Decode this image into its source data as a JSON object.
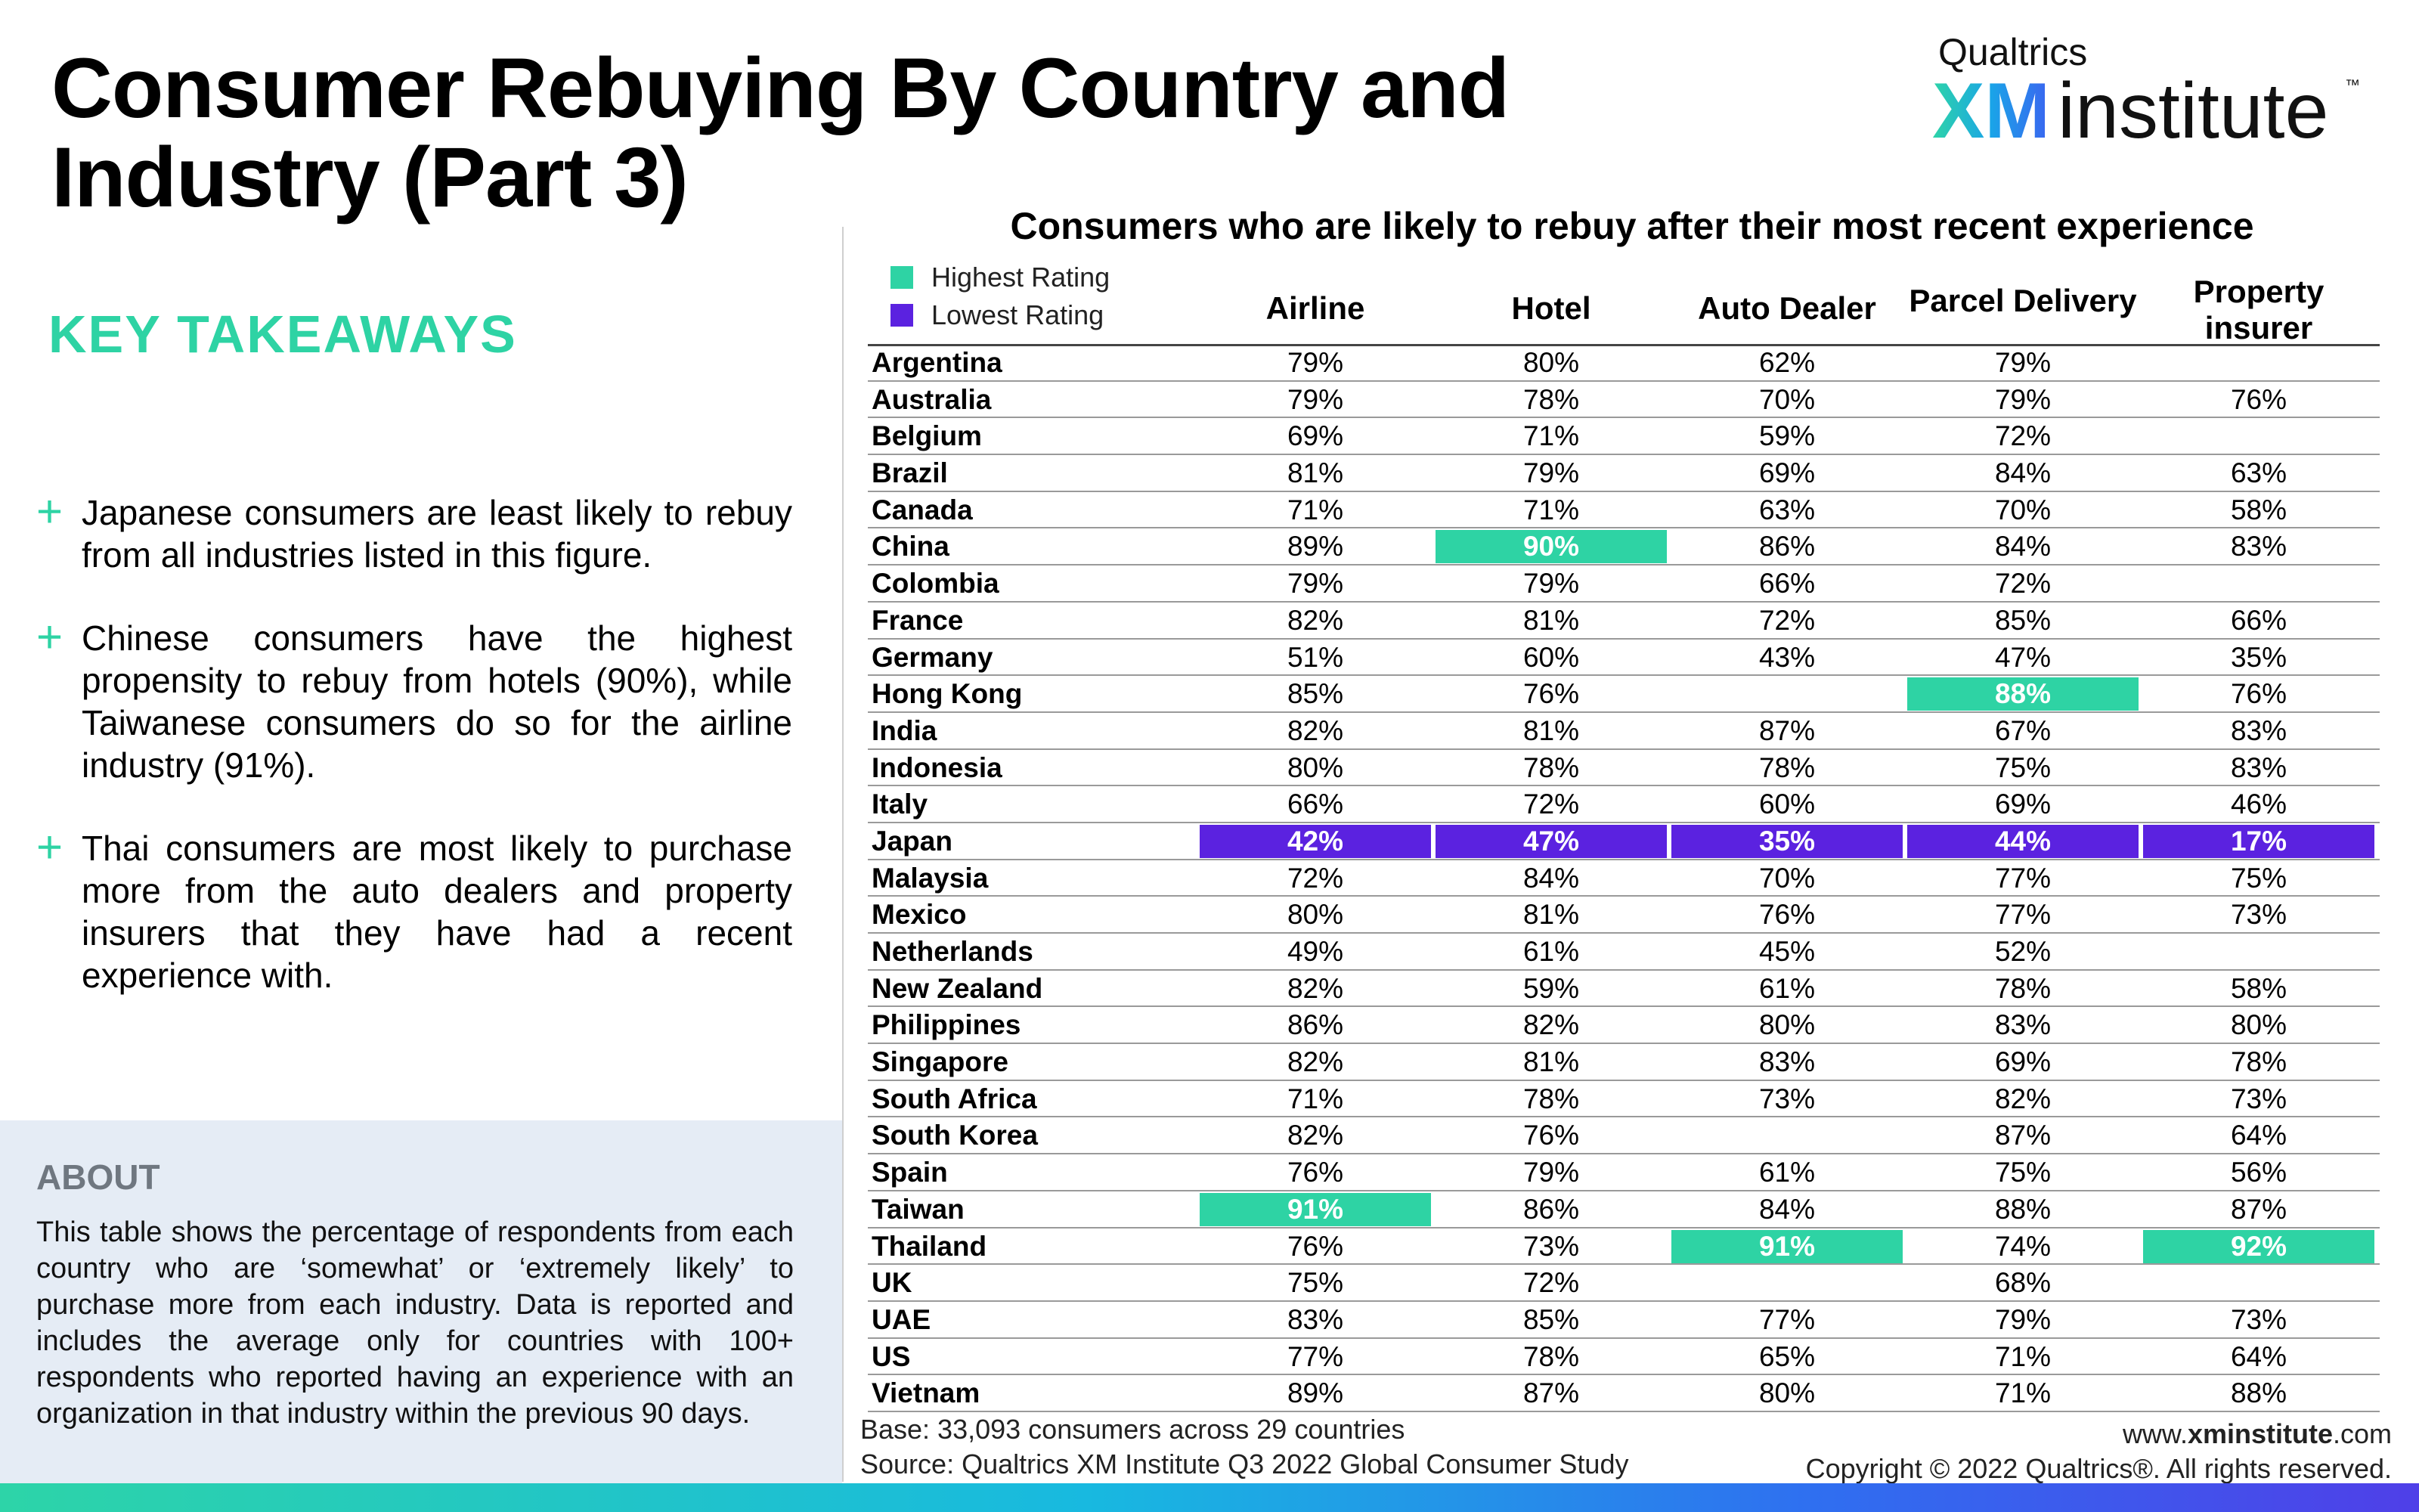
{
  "title": "Consumer Rebuying By Country and Industry (Part 3)",
  "brand": {
    "top": "Qualtrics",
    "xm": "XM",
    "institute": "institute",
    "tm": "™"
  },
  "takeaways": {
    "heading": "KEY TAKEAWAYS",
    "items": [
      "Japanese consumers are least likely to rebuy from all industries listed in this figure.",
      "Chinese consumers have the highest propensity to rebuy from hotels (90%), while Taiwanese consumers do so for the airline industry (91%).",
      "Thai consumers are most likely to purchase more from the auto dealers and property insurers that they have had a recent experience with."
    ]
  },
  "about": {
    "heading": "ABOUT",
    "text": "This table shows the percentage of respondents from each country who are ‘somewhat’ or ‘extremely likely’ to purchase more from each industry. Data is reported and includes the average only for countries with 100+ respondents who reported having an experience with an organization in that industry within the previous 90 days."
  },
  "footer": {
    "base": "Base: 33,093 consumers across 29 countries",
    "source": "Source: Qualtrics XM Institute Q3 2022 Global Consumer Study",
    "url_prefix": "www.",
    "url_bold": "xminstitute",
    "url_suffix": ".com",
    "copyright": "Copyright © 2022 Qualtrics®. All rights reserved."
  },
  "colors": {
    "highest": "#2ed3a4",
    "lowest": "#5b22e0",
    "accent": "#2ed3a4"
  },
  "chart_data": {
    "type": "table",
    "title": "Consumers who are likely to rebuy after their most recent experience",
    "legend": [
      {
        "label": "Highest Rating",
        "color": "#2ed3a4"
      },
      {
        "label": "Lowest Rating",
        "color": "#5b22e0"
      }
    ],
    "columns": [
      "Airline",
      "Hotel",
      "Auto Dealer",
      "Parcel Delivery",
      "Property insurer"
    ],
    "rows": [
      {
        "country": "Argentina",
        "values": [
          "79%",
          "80%",
          "62%",
          "79%",
          ""
        ]
      },
      {
        "country": "Australia",
        "values": [
          "79%",
          "78%",
          "70%",
          "79%",
          "76%"
        ]
      },
      {
        "country": "Belgium",
        "values": [
          "69%",
          "71%",
          "59%",
          "72%",
          ""
        ]
      },
      {
        "country": "Brazil",
        "values": [
          "81%",
          "79%",
          "69%",
          "84%",
          "63%"
        ]
      },
      {
        "country": "Canada",
        "values": [
          "71%",
          "71%",
          "63%",
          "70%",
          "58%"
        ]
      },
      {
        "country": "China",
        "values": [
          "89%",
          "90%",
          "86%",
          "84%",
          "83%"
        ],
        "highlight": [
          null,
          "highest",
          null,
          null,
          null
        ]
      },
      {
        "country": "Colombia",
        "values": [
          "79%",
          "79%",
          "66%",
          "72%",
          ""
        ]
      },
      {
        "country": "France",
        "values": [
          "82%",
          "81%",
          "72%",
          "85%",
          "66%"
        ]
      },
      {
        "country": "Germany",
        "values": [
          "51%",
          "60%",
          "43%",
          "47%",
          "35%"
        ]
      },
      {
        "country": "Hong Kong",
        "values": [
          "85%",
          "76%",
          "",
          "88%",
          "76%"
        ],
        "highlight": [
          null,
          null,
          null,
          "highest",
          null
        ]
      },
      {
        "country": "India",
        "values": [
          "82%",
          "81%",
          "87%",
          "67%",
          "83%"
        ]
      },
      {
        "country": "Indonesia",
        "values": [
          "80%",
          "78%",
          "78%",
          "75%",
          "83%"
        ]
      },
      {
        "country": "Italy",
        "values": [
          "66%",
          "72%",
          "60%",
          "69%",
          "46%"
        ]
      },
      {
        "country": "Japan",
        "values": [
          "42%",
          "47%",
          "35%",
          "44%",
          "17%"
        ],
        "highlight": [
          "lowest",
          "lowest",
          "lowest",
          "lowest",
          "lowest"
        ]
      },
      {
        "country": "Malaysia",
        "values": [
          "72%",
          "84%",
          "70%",
          "77%",
          "75%"
        ]
      },
      {
        "country": "Mexico",
        "values": [
          "80%",
          "81%",
          "76%",
          "77%",
          "73%"
        ]
      },
      {
        "country": "Netherlands",
        "values": [
          "49%",
          "61%",
          "45%",
          "52%",
          ""
        ]
      },
      {
        "country": "New Zealand",
        "values": [
          "82%",
          "59%",
          "61%",
          "78%",
          "58%"
        ]
      },
      {
        "country": "Philippines",
        "values": [
          "86%",
          "82%",
          "80%",
          "83%",
          "80%"
        ]
      },
      {
        "country": "Singapore",
        "values": [
          "82%",
          "81%",
          "83%",
          "69%",
          "78%"
        ]
      },
      {
        "country": "South Africa",
        "values": [
          "71%",
          "78%",
          "73%",
          "82%",
          "73%"
        ]
      },
      {
        "country": "South Korea",
        "values": [
          "82%",
          "76%",
          "",
          "87%",
          "64%"
        ]
      },
      {
        "country": "Spain",
        "values": [
          "76%",
          "79%",
          "61%",
          "75%",
          "56%"
        ]
      },
      {
        "country": "Taiwan",
        "values": [
          "91%",
          "86%",
          "84%",
          "88%",
          "87%"
        ],
        "highlight": [
          "highest",
          null,
          null,
          null,
          null
        ]
      },
      {
        "country": "Thailand",
        "values": [
          "76%",
          "73%",
          "91%",
          "74%",
          "92%"
        ],
        "highlight": [
          null,
          null,
          "highest",
          null,
          "highest"
        ]
      },
      {
        "country": "UK",
        "values": [
          "75%",
          "72%",
          "",
          "68%",
          ""
        ]
      },
      {
        "country": "UAE",
        "values": [
          "83%",
          "85%",
          "77%",
          "79%",
          "73%"
        ]
      },
      {
        "country": "US",
        "values": [
          "77%",
          "78%",
          "65%",
          "71%",
          "64%"
        ]
      },
      {
        "country": "Vietnam",
        "values": [
          "89%",
          "87%",
          "80%",
          "71%",
          "88%"
        ]
      }
    ]
  }
}
